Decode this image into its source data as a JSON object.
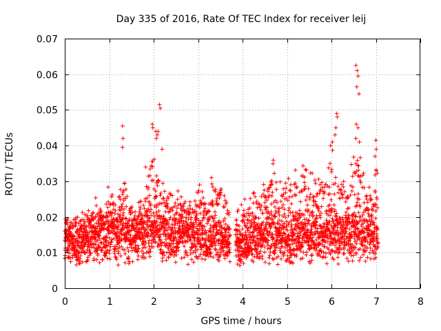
{
  "chart_data": {
    "type": "scatter",
    "title": "Day 335 of 2016, Rate Of TEC Index for receiver leij",
    "xlabel": "GPS time / hours",
    "ylabel": "ROTI / TECUs",
    "xlim": [
      0,
      8
    ],
    "ylim": [
      0,
      0.07
    ],
    "grid": true,
    "marker": "+",
    "color": "#ff0000",
    "x_ticks": [
      "0",
      "1",
      "2",
      "3",
      "4",
      "5",
      "6",
      "7",
      "8"
    ],
    "y_ticks": [
      "0",
      "0.01",
      "0.02",
      "0.03",
      "0.04",
      "0.05",
      "0.06",
      "0.07"
    ],
    "profile": {
      "x": [
        0.0,
        0.05,
        0.1,
        0.2,
        0.3,
        0.4,
        0.5,
        0.6,
        0.7,
        0.8,
        0.9,
        1.0,
        1.1,
        1.2,
        1.3,
        1.4,
        1.5,
        1.6,
        1.7,
        1.8,
        1.9,
        2.0,
        2.1,
        2.2,
        2.3,
        2.4,
        2.5,
        2.6,
        2.7,
        2.8,
        2.9,
        3.0,
        3.1,
        3.2,
        3.3,
        3.4,
        3.5,
        3.6,
        3.7,
        3.85,
        3.9,
        4.0,
        4.1,
        4.2,
        4.3,
        4.4,
        4.5,
        4.6,
        4.7,
        4.8,
        4.9,
        5.0,
        5.1,
        5.2,
        5.3,
        5.4,
        5.5,
        5.6,
        5.7,
        5.8,
        5.9,
        6.0,
        6.1,
        6.2,
        6.3,
        6.4,
        6.5,
        6.6,
        6.7,
        6.8,
        6.9,
        7.0,
        7.05
      ],
      "median": [
        0.011,
        0.015,
        0.013,
        0.012,
        0.012,
        0.013,
        0.014,
        0.015,
        0.014,
        0.015,
        0.014,
        0.016,
        0.015,
        0.013,
        0.016,
        0.014,
        0.015,
        0.014,
        0.015,
        0.014,
        0.016,
        0.016,
        0.017,
        0.015,
        0.015,
        0.015,
        0.014,
        0.015,
        0.015,
        0.014,
        0.014,
        0.015,
        0.014,
        0.013,
        0.014,
        0.013,
        0.014,
        0.013,
        0.012,
        0.013,
        0.012,
        0.013,
        0.013,
        0.013,
        0.014,
        0.013,
        0.014,
        0.014,
        0.014,
        0.014,
        0.013,
        0.014,
        0.014,
        0.015,
        0.014,
        0.015,
        0.014,
        0.015,
        0.015,
        0.014,
        0.015,
        0.015,
        0.015,
        0.015,
        0.014,
        0.015,
        0.015,
        0.016,
        0.015,
        0.015,
        0.015,
        0.014,
        0.013
      ],
      "upper": [
        0.024,
        0.023,
        0.019,
        0.02,
        0.02,
        0.022,
        0.021,
        0.022,
        0.028,
        0.024,
        0.025,
        0.032,
        0.026,
        0.025,
        0.035,
        0.027,
        0.025,
        0.024,
        0.026,
        0.028,
        0.034,
        0.038,
        0.036,
        0.03,
        0.028,
        0.027,
        0.029,
        0.029,
        0.027,
        0.025,
        0.027,
        0.033,
        0.028,
        0.025,
        0.03,
        0.028,
        0.033,
        0.027,
        0.024,
        0.024,
        0.022,
        0.025,
        0.026,
        0.025,
        0.029,
        0.027,
        0.03,
        0.034,
        0.037,
        0.03,
        0.031,
        0.032,
        0.033,
        0.035,
        0.031,
        0.037,
        0.034,
        0.033,
        0.031,
        0.033,
        0.04,
        0.042,
        0.036,
        0.033,
        0.03,
        0.032,
        0.038,
        0.042,
        0.035,
        0.032,
        0.03,
        0.035,
        0.041
      ],
      "lower": [
        0.005,
        0.006,
        0.005,
        0.006,
        0.005,
        0.005,
        0.006,
        0.006,
        0.006,
        0.005,
        0.006,
        0.006,
        0.006,
        0.005,
        0.006,
        0.005,
        0.006,
        0.005,
        0.006,
        0.005,
        0.006,
        0.006,
        0.006,
        0.005,
        0.005,
        0.006,
        0.005,
        0.006,
        0.006,
        0.005,
        0.005,
        0.006,
        0.006,
        0.005,
        0.006,
        0.005,
        0.006,
        0.005,
        0.006,
        0.006,
        0.005,
        0.005,
        0.006,
        0.005,
        0.006,
        0.004,
        0.006,
        0.005,
        0.004,
        0.005,
        0.005,
        0.006,
        0.005,
        0.006,
        0.005,
        0.006,
        0.005,
        0.006,
        0.005,
        0.006,
        0.005,
        0.006,
        0.005,
        0.006,
        0.005,
        0.006,
        0.005,
        0.006,
        0.006,
        0.006,
        0.005,
        0.007,
        0.007
      ]
    },
    "outliers": [
      {
        "x": 1.3,
        "y": 0.0455
      },
      {
        "x": 1.31,
        "y": 0.042
      },
      {
        "x": 1.3,
        "y": 0.0395
      },
      {
        "x": 1.97,
        "y": 0.046
      },
      {
        "x": 1.98,
        "y": 0.045
      },
      {
        "x": 2.05,
        "y": 0.044
      },
      {
        "x": 2.08,
        "y": 0.043
      },
      {
        "x": 2.06,
        "y": 0.042
      },
      {
        "x": 2.13,
        "y": 0.0515
      },
      {
        "x": 2.15,
        "y": 0.0505
      },
      {
        "x": 2.1,
        "y": 0.044
      },
      {
        "x": 6.12,
        "y": 0.049
      },
      {
        "x": 6.13,
        "y": 0.048
      },
      {
        "x": 6.1,
        "y": 0.045
      },
      {
        "x": 6.08,
        "y": 0.043
      },
      {
        "x": 5.98,
        "y": 0.04
      },
      {
        "x": 6.02,
        "y": 0.041
      },
      {
        "x": 6.55,
        "y": 0.0625
      },
      {
        "x": 6.58,
        "y": 0.061
      },
      {
        "x": 6.6,
        "y": 0.0595
      },
      {
        "x": 6.57,
        "y": 0.0565
      },
      {
        "x": 6.62,
        "y": 0.0545
      },
      {
        "x": 6.56,
        "y": 0.046
      },
      {
        "x": 6.6,
        "y": 0.045
      },
      {
        "x": 6.63,
        "y": 0.041
      },
      {
        "x": 6.55,
        "y": 0.042
      },
      {
        "x": 7.0,
        "y": 0.0415
      },
      {
        "x": 7.01,
        "y": 0.039
      },
      {
        "x": 6.98,
        "y": 0.037
      },
      {
        "x": 2.19,
        "y": 0.039
      },
      {
        "x": 1.82,
        "y": 0.034
      },
      {
        "x": 3.3,
        "y": 0.031
      }
    ]
  }
}
